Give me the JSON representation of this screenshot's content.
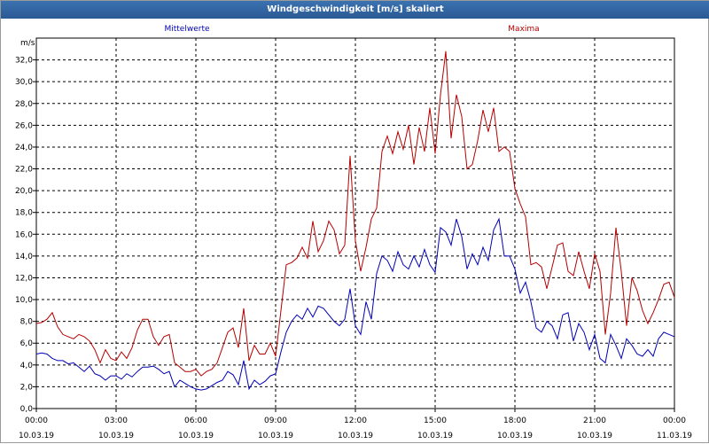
{
  "window": {
    "title": "Windgeschwindigkeit [m/s] skaliert"
  },
  "chart_data": {
    "type": "line",
    "title": "Windgeschwindigkeit [m/s] skaliert",
    "ylabel": "m/s",
    "ylim": [
      0,
      34
    ],
    "y_ticks": [
      "0,0",
      "2,0",
      "4,0",
      "6,0",
      "8,0",
      "10,0",
      "12,0",
      "14,0",
      "16,0",
      "18,0",
      "20,0",
      "22,0",
      "24,0",
      "26,0",
      "28,0",
      "30,0",
      "32,0"
    ],
    "x_range_hours": [
      0,
      24
    ],
    "x_ticks": [
      {
        "time": "00:00",
        "date": "10.03.19"
      },
      {
        "time": "03:00",
        "date": "10.03.19"
      },
      {
        "time": "06:00",
        "date": "10.03.19"
      },
      {
        "time": "09:00",
        "date": "10.03.19"
      },
      {
        "time": "12:00",
        "date": "10.03.19"
      },
      {
        "time": "15:00",
        "date": "10.03.19"
      },
      {
        "time": "18:00",
        "date": "10.03.19"
      },
      {
        "time": "21:00",
        "date": "10.03.19"
      },
      {
        "time": "00:00",
        "date": "11.03.19"
      }
    ],
    "grid": true,
    "series_label_placement": "top",
    "series": [
      {
        "name": "Mittelwerte",
        "color": "#0000b4",
        "points": [
          [
            0.0,
            5.0
          ],
          [
            0.2,
            5.1
          ],
          [
            0.4,
            5.0
          ],
          [
            0.6,
            4.6
          ],
          [
            0.8,
            4.4
          ],
          [
            1.0,
            4.4
          ],
          [
            1.2,
            4.1
          ],
          [
            1.4,
            4.2
          ],
          [
            1.6,
            3.8
          ],
          [
            1.8,
            3.4
          ],
          [
            2.0,
            3.9
          ],
          [
            2.2,
            3.2
          ],
          [
            2.4,
            3.0
          ],
          [
            2.6,
            2.6
          ],
          [
            2.8,
            3.0
          ],
          [
            3.0,
            3.0
          ],
          [
            3.2,
            2.7
          ],
          [
            3.4,
            3.2
          ],
          [
            3.6,
            2.9
          ],
          [
            3.8,
            3.4
          ],
          [
            4.0,
            3.8
          ],
          [
            4.2,
            3.8
          ],
          [
            4.4,
            3.9
          ],
          [
            4.6,
            3.6
          ],
          [
            4.8,
            3.2
          ],
          [
            5.0,
            3.4
          ],
          [
            5.2,
            2.0
          ],
          [
            5.4,
            2.6
          ],
          [
            5.6,
            2.3
          ],
          [
            5.8,
            2.0
          ],
          [
            6.0,
            1.8
          ],
          [
            6.2,
            1.7
          ],
          [
            6.4,
            1.8
          ],
          [
            6.6,
            2.1
          ],
          [
            6.8,
            2.4
          ],
          [
            7.0,
            2.6
          ],
          [
            7.2,
            3.4
          ],
          [
            7.4,
            3.1
          ],
          [
            7.6,
            2.2
          ],
          [
            7.8,
            4.4
          ],
          [
            8.0,
            1.8
          ],
          [
            8.2,
            2.6
          ],
          [
            8.4,
            2.2
          ],
          [
            8.6,
            2.5
          ],
          [
            8.8,
            3.0
          ],
          [
            9.0,
            3.2
          ],
          [
            9.2,
            5.2
          ],
          [
            9.4,
            7.0
          ],
          [
            9.6,
            8.0
          ],
          [
            9.8,
            8.6
          ],
          [
            10.0,
            8.2
          ],
          [
            10.2,
            9.2
          ],
          [
            10.4,
            8.4
          ],
          [
            10.6,
            9.4
          ],
          [
            10.8,
            9.2
          ],
          [
            11.0,
            8.6
          ],
          [
            11.2,
            8.0
          ],
          [
            11.4,
            7.6
          ],
          [
            11.6,
            8.2
          ],
          [
            11.8,
            11.0
          ],
          [
            12.0,
            7.6
          ],
          [
            12.2,
            6.8
          ],
          [
            12.4,
            9.8
          ],
          [
            12.6,
            8.2
          ],
          [
            12.8,
            12.4
          ],
          [
            13.0,
            14.0
          ],
          [
            13.2,
            13.6
          ],
          [
            13.4,
            12.6
          ],
          [
            13.6,
            14.4
          ],
          [
            13.8,
            13.2
          ],
          [
            14.0,
            12.8
          ],
          [
            14.2,
            14.0
          ],
          [
            14.4,
            13.0
          ],
          [
            14.6,
            14.6
          ],
          [
            14.8,
            13.2
          ],
          [
            15.0,
            12.5
          ],
          [
            15.2,
            16.6
          ],
          [
            15.4,
            16.2
          ],
          [
            15.6,
            15.0
          ],
          [
            15.8,
            17.4
          ],
          [
            16.0,
            15.8
          ],
          [
            16.2,
            12.8
          ],
          [
            16.4,
            14.2
          ],
          [
            16.6,
            13.2
          ],
          [
            16.8,
            14.8
          ],
          [
            17.0,
            13.6
          ],
          [
            17.2,
            16.4
          ],
          [
            17.4,
            17.4
          ],
          [
            17.6,
            14.0
          ],
          [
            17.8,
            14.0
          ],
          [
            18.0,
            12.8
          ],
          [
            18.2,
            10.6
          ],
          [
            18.4,
            11.6
          ],
          [
            18.6,
            9.8
          ],
          [
            18.8,
            7.4
          ],
          [
            19.0,
            7.0
          ],
          [
            19.2,
            8.0
          ],
          [
            19.4,
            7.6
          ],
          [
            19.6,
            6.4
          ],
          [
            19.8,
            8.6
          ],
          [
            20.0,
            8.8
          ],
          [
            20.2,
            6.2
          ],
          [
            20.4,
            7.8
          ],
          [
            20.6,
            7.0
          ],
          [
            20.8,
            5.4
          ],
          [
            21.0,
            6.8
          ],
          [
            21.2,
            4.6
          ],
          [
            21.4,
            4.2
          ],
          [
            21.6,
            6.8
          ],
          [
            21.8,
            5.8
          ],
          [
            22.0,
            4.6
          ],
          [
            22.2,
            6.4
          ],
          [
            22.4,
            5.8
          ],
          [
            22.6,
            5.0
          ],
          [
            22.8,
            4.8
          ],
          [
            23.0,
            5.4
          ],
          [
            23.2,
            4.8
          ],
          [
            23.4,
            6.4
          ],
          [
            23.6,
            7.0
          ],
          [
            23.8,
            6.8
          ],
          [
            24.0,
            6.6
          ]
        ]
      },
      {
        "name": "Maxima",
        "color": "#b40000",
        "points": [
          [
            0.0,
            7.8
          ],
          [
            0.2,
            7.9
          ],
          [
            0.4,
            8.2
          ],
          [
            0.6,
            8.8
          ],
          [
            0.8,
            7.5
          ],
          [
            1.0,
            6.8
          ],
          [
            1.2,
            6.6
          ],
          [
            1.4,
            6.4
          ],
          [
            1.6,
            6.8
          ],
          [
            1.8,
            6.6
          ],
          [
            2.0,
            6.2
          ],
          [
            2.2,
            5.4
          ],
          [
            2.4,
            4.2
          ],
          [
            2.6,
            5.4
          ],
          [
            2.8,
            4.6
          ],
          [
            3.0,
            4.4
          ],
          [
            3.2,
            5.2
          ],
          [
            3.4,
            4.6
          ],
          [
            3.6,
            5.6
          ],
          [
            3.8,
            7.2
          ],
          [
            4.0,
            8.2
          ],
          [
            4.2,
            8.2
          ],
          [
            4.4,
            6.6
          ],
          [
            4.6,
            5.8
          ],
          [
            4.8,
            6.6
          ],
          [
            5.0,
            6.8
          ],
          [
            5.2,
            4.2
          ],
          [
            5.4,
            3.8
          ],
          [
            5.6,
            3.4
          ],
          [
            5.8,
            3.4
          ],
          [
            6.0,
            3.6
          ],
          [
            6.2,
            3.0
          ],
          [
            6.4,
            3.4
          ],
          [
            6.6,
            3.6
          ],
          [
            6.8,
            4.2
          ],
          [
            7.0,
            5.6
          ],
          [
            7.2,
            7.0
          ],
          [
            7.4,
            7.4
          ],
          [
            7.6,
            5.6
          ],
          [
            7.8,
            9.2
          ],
          [
            8.0,
            4.4
          ],
          [
            8.2,
            5.8
          ],
          [
            8.4,
            5.0
          ],
          [
            8.6,
            5.0
          ],
          [
            8.8,
            6.0
          ],
          [
            9.0,
            4.8
          ],
          [
            9.2,
            9.0
          ],
          [
            9.4,
            13.2
          ],
          [
            9.6,
            13.4
          ],
          [
            9.8,
            13.8
          ],
          [
            10.0,
            14.8
          ],
          [
            10.2,
            13.8
          ],
          [
            10.4,
            17.2
          ],
          [
            10.6,
            14.4
          ],
          [
            10.8,
            15.4
          ],
          [
            11.0,
            17.2
          ],
          [
            11.2,
            16.4
          ],
          [
            11.4,
            14.2
          ],
          [
            11.6,
            15.0
          ],
          [
            11.8,
            23.2
          ],
          [
            12.0,
            15.4
          ],
          [
            12.2,
            12.6
          ],
          [
            12.4,
            14.8
          ],
          [
            12.6,
            17.4
          ],
          [
            12.8,
            18.4
          ],
          [
            13.0,
            23.6
          ],
          [
            13.2,
            25.0
          ],
          [
            13.4,
            23.4
          ],
          [
            13.6,
            25.4
          ],
          [
            13.8,
            23.8
          ],
          [
            14.0,
            26.0
          ],
          [
            14.2,
            22.4
          ],
          [
            14.4,
            25.8
          ],
          [
            14.6,
            23.6
          ],
          [
            14.8,
            27.6
          ],
          [
            15.0,
            23.4
          ],
          [
            15.2,
            28.8
          ],
          [
            15.4,
            32.8
          ],
          [
            15.6,
            24.8
          ],
          [
            15.8,
            28.8
          ],
          [
            16.0,
            26.8
          ],
          [
            16.2,
            22.0
          ],
          [
            16.4,
            22.4
          ],
          [
            16.6,
            24.6
          ],
          [
            16.8,
            27.4
          ],
          [
            17.0,
            25.4
          ],
          [
            17.2,
            27.6
          ],
          [
            17.4,
            23.6
          ],
          [
            17.6,
            24.0
          ],
          [
            17.8,
            23.6
          ],
          [
            18.0,
            20.2
          ],
          [
            18.2,
            18.8
          ],
          [
            18.4,
            17.6
          ],
          [
            18.6,
            13.2
          ],
          [
            18.8,
            13.4
          ],
          [
            19.0,
            13.0
          ],
          [
            19.2,
            11.0
          ],
          [
            19.4,
            13.0
          ],
          [
            19.6,
            15.0
          ],
          [
            19.8,
            15.2
          ],
          [
            20.0,
            12.6
          ],
          [
            20.2,
            12.2
          ],
          [
            20.4,
            14.4
          ],
          [
            20.6,
            12.6
          ],
          [
            20.8,
            11.0
          ],
          [
            21.0,
            14.2
          ],
          [
            21.2,
            12.6
          ],
          [
            21.4,
            6.8
          ],
          [
            21.6,
            10.6
          ],
          [
            21.8,
            16.6
          ],
          [
            22.0,
            12.6
          ],
          [
            22.2,
            7.6
          ],
          [
            22.4,
            12.0
          ],
          [
            22.6,
            10.8
          ],
          [
            22.8,
            9.0
          ],
          [
            23.0,
            7.8
          ],
          [
            23.2,
            8.8
          ],
          [
            23.4,
            10.0
          ],
          [
            23.6,
            11.4
          ],
          [
            23.8,
            11.6
          ],
          [
            24.0,
            10.2
          ]
        ]
      }
    ]
  }
}
